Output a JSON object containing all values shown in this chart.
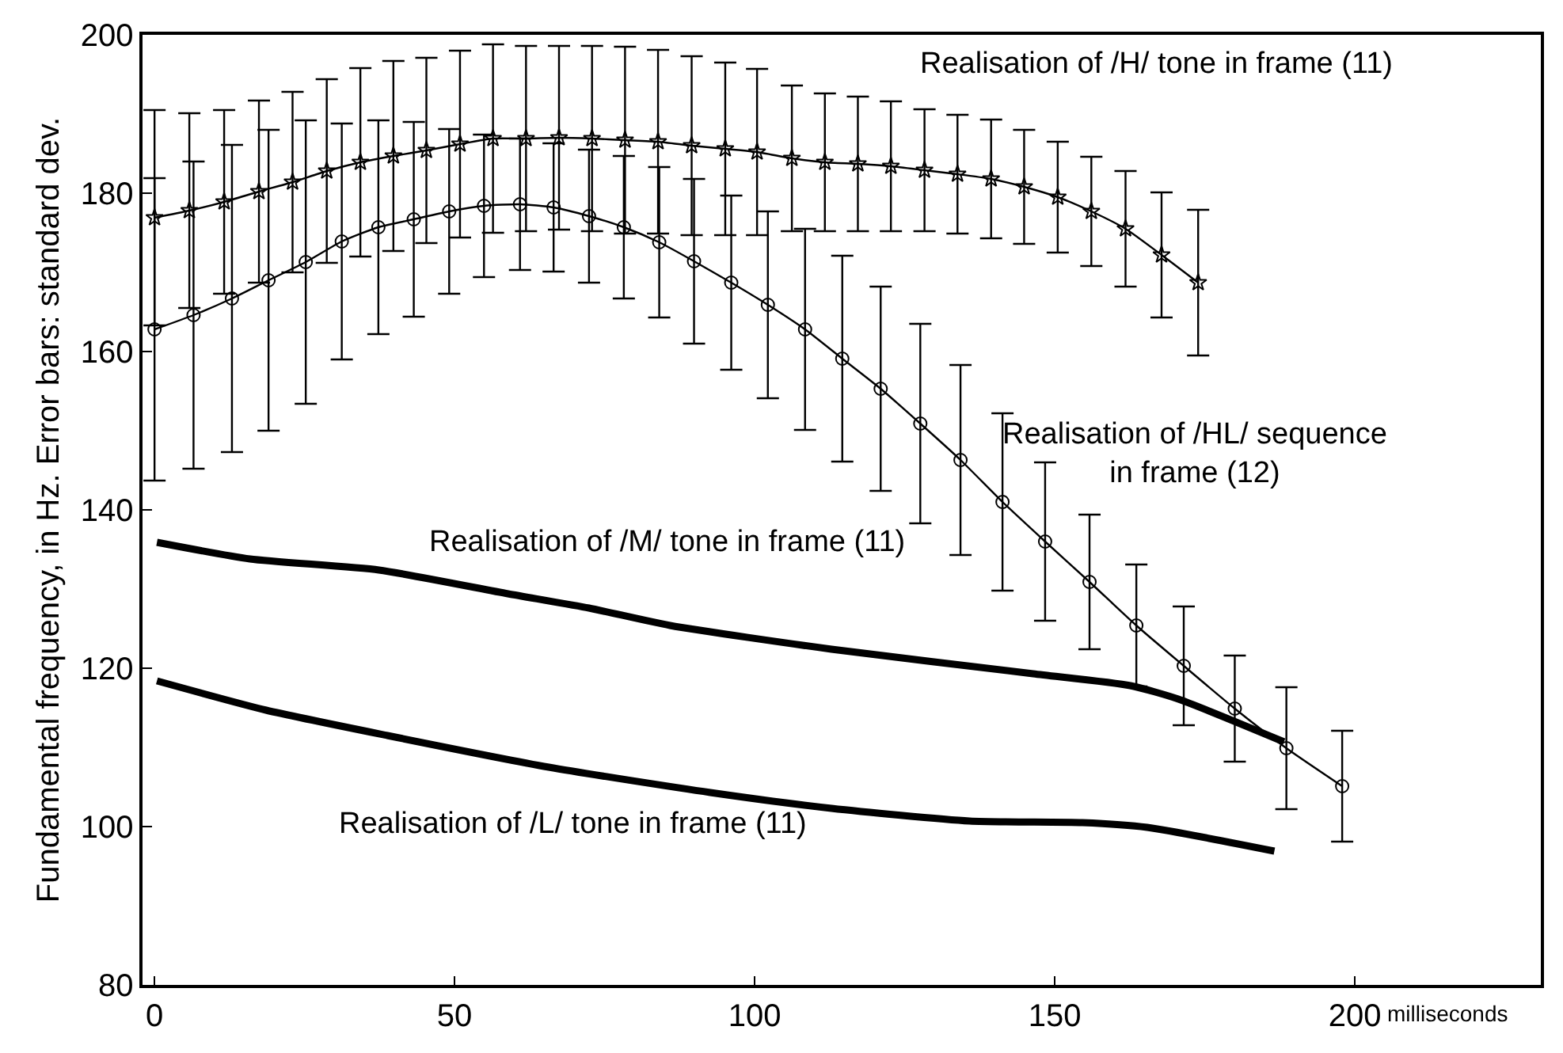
{
  "chart_data": {
    "type": "line",
    "ylabel": "Fundamental frequency, in Hz. Error bars: standard dev.",
    "xlabel": "milliseconds",
    "xlim": [
      -2,
      231
    ],
    "ylim": [
      80,
      200
    ],
    "xticks": [
      0,
      50,
      100,
      150,
      200
    ],
    "yticks": [
      80,
      100,
      120,
      140,
      160,
      180,
      200
    ],
    "series": [
      {
        "color": "#000000",
        "marker": "star",
        "x": [
          0,
          5.8,
          11.6,
          17.4,
          23.0,
          28.7,
          34.3,
          39.8,
          45.3,
          50.9,
          56.4,
          61.9,
          67.4,
          72.9,
          78.4,
          83.9,
          89.5,
          95.1,
          100.4,
          106.2,
          111.7,
          117.2,
          122.7,
          128.3,
          133.8,
          139.4,
          144.9,
          150.5,
          156.1,
          161.8,
          167.8,
          173.9
        ],
        "values": [
          176.9,
          177.8,
          178.9,
          180.2,
          181.4,
          182.8,
          183.9,
          184.7,
          185.4,
          186.2,
          186.9,
          186.9,
          187.0,
          186.9,
          186.7,
          186.5,
          186.0,
          185.6,
          185.2,
          184.4,
          183.9,
          183.7,
          183.4,
          182.9,
          182.4,
          181.8,
          180.8,
          179.5,
          177.7,
          175.5,
          172.2,
          168.7
        ],
        "errors": [
          13.6,
          12.3,
          11.6,
          11.5,
          11.4,
          11.6,
          11.9,
          12.0,
          11.7,
          11.8,
          11.9,
          11.7,
          11.6,
          11.7,
          11.8,
          11.6,
          11.3,
          10.9,
          10.5,
          9.2,
          8.7,
          8.5,
          8.2,
          7.7,
          7.5,
          7.5,
          7.2,
          7.0,
          6.9,
          7.3,
          7.9,
          9.2
        ]
      },
      {
        "color": "#000000",
        "marker": "circle",
        "x": [
          0,
          6.5,
          12.9,
          19.0,
          25.2,
          31.2,
          37.3,
          43.2,
          49.1,
          54.9,
          60.9,
          66.5,
          72.4,
          78.2,
          84.1,
          89.9,
          96.1,
          102.2,
          108.4,
          114.6,
          121.0,
          127.6,
          134.3,
          141.3,
          148.4,
          155.8,
          163.6,
          171.5,
          180.0,
          188.6,
          197.9
        ],
        "values": [
          162.8,
          164.6,
          166.7,
          169.0,
          171.3,
          173.9,
          175.7,
          176.7,
          177.7,
          178.4,
          178.6,
          178.2,
          177.1,
          175.7,
          173.8,
          171.4,
          168.7,
          165.9,
          162.8,
          159.1,
          155.3,
          150.9,
          146.3,
          141.0,
          136.0,
          130.9,
          125.4,
          120.3,
          114.9,
          109.9,
          105.1
        ],
        "errors": [
          19.1,
          19.4,
          19.4,
          19.0,
          17.9,
          14.9,
          13.5,
          12.3,
          10.4,
          9.0,
          8.3,
          8.1,
          8.4,
          9.0,
          9.5,
          10.4,
          11.0,
          11.8,
          12.7,
          13.0,
          12.9,
          12.6,
          12.0,
          11.2,
          10.0,
          8.5,
          7.7,
          7.5,
          6.7,
          7.7,
          7.0
        ]
      },
      {
        "color": "#000000",
        "marker": "none",
        "x": [
          0.4,
          15.9,
          37.4,
          58.9,
          72.4,
          85.9,
          112.8,
          146.4,
          162.6,
          170.6,
          188.2
        ],
        "values": [
          135.9,
          133.8,
          132.4,
          129.4,
          127.6,
          125.4,
          122.4,
          119.3,
          117.8,
          116.1,
          110.7
        ]
      },
      {
        "color": "#000000",
        "marker": "none",
        "x": [
          0.4,
          18.6,
          38.8,
          65.7,
          92.6,
          112.8,
          135.8,
          154.6,
          165.4,
          186.6
        ],
        "values": [
          118.4,
          114.7,
          111.5,
          107.5,
          104.3,
          102.3,
          100.7,
          100.5,
          99.9,
          96.9
        ]
      }
    ],
    "annotations": [
      "Realisation of /H/ tone in frame (11)",
      "Realisation of /HL/ sequence\nin frame (12)",
      "Realisation of /M/ tone in frame (11)",
      "Realisation of /L/ tone in frame (11)"
    ]
  }
}
